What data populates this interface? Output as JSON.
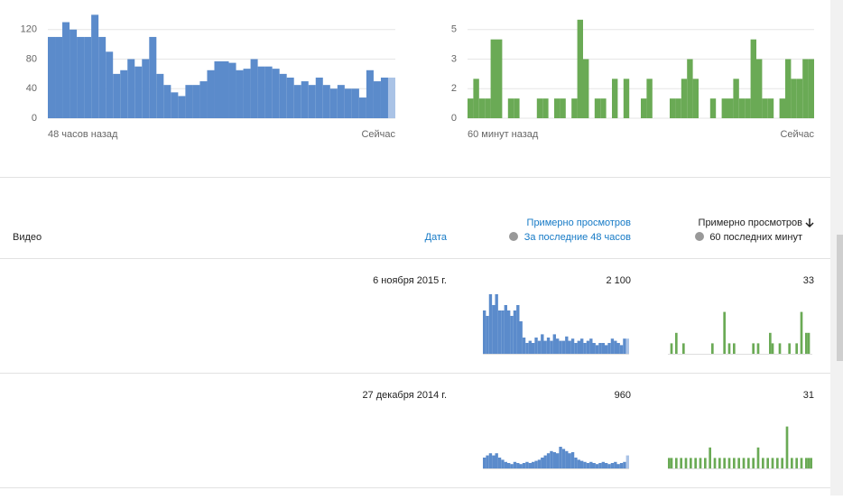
{
  "chart_data": [
    {
      "type": "bar",
      "color": "#5b8bcb",
      "partial_color": "#aac3e6",
      "values": [
        110,
        110,
        130,
        120,
        110,
        110,
        140,
        110,
        90,
        60,
        65,
        80,
        70,
        80,
        110,
        60,
        45,
        35,
        30,
        45,
        45,
        50,
        65,
        77,
        77,
        75,
        65,
        67,
        80,
        70,
        70,
        67,
        60,
        55,
        45,
        50,
        45,
        55,
        45,
        40,
        45,
        40,
        40,
        28,
        65,
        50,
        55,
        55
      ],
      "ylim": [
        0,
        160
      ],
      "yticks": [
        0,
        40,
        80,
        120
      ],
      "x_start_label": "48 часов назад",
      "x_end_label": "Сейчас"
    },
    {
      "type": "bar",
      "color": "#6aaa55",
      "values": [
        1,
        2,
        1,
        1,
        4,
        4,
        0,
        1,
        1,
        0,
        0,
        0,
        1,
        1,
        0,
        1,
        1,
        0,
        1,
        5,
        3,
        0,
        1,
        1,
        0,
        2,
        0,
        2,
        0,
        0,
        1,
        2,
        0,
        0,
        0,
        1,
        1,
        2,
        3,
        2,
        0,
        0,
        1,
        0,
        1,
        1,
        2,
        1,
        1,
        4,
        3,
        1,
        1,
        0,
        1,
        3,
        2,
        2,
        3,
        3
      ],
      "ylim": [
        0,
        6
      ],
      "yticks": [
        0,
        {
          "value": 1.5,
          "label": "2"
        },
        3,
        {
          "value": 4.5,
          "label": "5"
        }
      ],
      "x_start_label": "60 минут назад",
      "x_end_label": "Сейчас"
    }
  ],
  "table": {
    "headers": {
      "video": "Видео",
      "date": "Дата",
      "views48": "Примерно просмотров",
      "views48_sub": "За последние 48 часов",
      "views60": "Примерно просмотров",
      "views60_sub": "60 последних минут"
    },
    "rows": [
      {
        "date": "6 ноября 2015 г.",
        "views48": "2 100",
        "views60": "33",
        "spark48": {
          "ylim": [
            0,
            60
          ],
          "values": [
            40,
            35,
            55,
            45,
            55,
            40,
            40,
            45,
            40,
            35,
            40,
            45,
            30,
            15,
            10,
            12,
            10,
            15,
            12,
            18,
            12,
            15,
            12,
            18,
            14,
            12,
            12,
            16,
            12,
            14,
            10,
            12,
            14,
            10,
            12,
            14,
            10,
            8,
            10,
            10,
            8,
            10,
            14,
            12,
            10,
            8,
            14,
            14
          ]
        },
        "spark60": {
          "ylim": [
            0,
            5
          ],
          "values": [
            0,
            1,
            0,
            2,
            0,
            0,
            1,
            0,
            0,
            0,
            0,
            0,
            0,
            0,
            0,
            0,
            0,
            0,
            1,
            0,
            0,
            0,
            0,
            4,
            0,
            1,
            0,
            1,
            0,
            0,
            0,
            0,
            0,
            0,
            0,
            1,
            0,
            1,
            0,
            0,
            0,
            0,
            2,
            1,
            0,
            0,
            1,
            0,
            0,
            0,
            1,
            0,
            0,
            1,
            0,
            4,
            0,
            2,
            2,
            0
          ]
        }
      },
      {
        "date": "27 декабря 2014 г.",
        "views48": "960",
        "views60": "31",
        "spark48": {
          "ylim": [
            0,
            60
          ],
          "values": [
            10,
            12,
            14,
            12,
            14,
            10,
            8,
            6,
            5,
            4,
            6,
            5,
            4,
            5,
            6,
            5,
            6,
            7,
            8,
            10,
            12,
            14,
            16,
            15,
            14,
            20,
            18,
            16,
            14,
            15,
            10,
            8,
            7,
            6,
            5,
            6,
            5,
            4,
            5,
            6,
            5,
            4,
            5,
            6,
            4,
            5,
            6,
            12
          ]
        },
        "spark60": {
          "ylim": [
            0,
            5
          ],
          "values": [
            1,
            1,
            0,
            1,
            0,
            1,
            0,
            1,
            0,
            1,
            0,
            1,
            0,
            1,
            0,
            1,
            0,
            2,
            0,
            1,
            0,
            1,
            0,
            1,
            0,
            1,
            0,
            1,
            0,
            1,
            0,
            1,
            0,
            1,
            0,
            1,
            0,
            2,
            0,
            1,
            0,
            1,
            0,
            1,
            0,
            1,
            0,
            1,
            0,
            4,
            0,
            1,
            0,
            1,
            0,
            1,
            0,
            1,
            1,
            1
          ]
        }
      }
    ]
  }
}
